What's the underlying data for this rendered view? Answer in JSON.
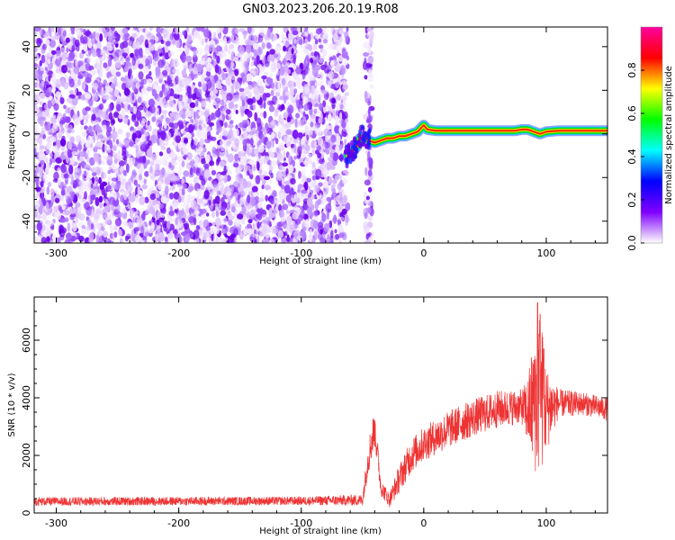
{
  "title": "GN03.2023.206.20.19.R08",
  "chart_data": [
    {
      "type": "heatmap",
      "title": "GN03.2023.206.20.19.R08",
      "xlabel": "Height of straight line (km)",
      "ylabel": "Frequency (Hz)",
      "xlim": [
        -318,
        150
      ],
      "ylim": [
        -50,
        49
      ],
      "x_ticks": [
        "-300",
        "-200",
        "-100",
        "0",
        "100"
      ],
      "y_ticks": [
        "-40",
        "-20",
        "0",
        "20",
        "40"
      ],
      "colorbar": {
        "label": "Normalized spectral amplitude",
        "range": [
          0,
          1
        ],
        "ticks": [
          "0.0",
          "0.2",
          "0.4",
          "0.6",
          "0.8"
        ],
        "colors": [
          "#ffffff",
          "#8000ff",
          "#0000ff",
          "#00ffff",
          "#00ff00",
          "#ffff00",
          "#ff0000",
          "#ff00a0"
        ]
      },
      "noise_region_x": [
        -318,
        -62
      ],
      "noise_strip_x": [
        -48,
        -42
      ],
      "ridge": {
        "x": [
          -62,
          -58,
          -55,
          -52,
          -48,
          -45,
          -40,
          -35,
          -30,
          -25,
          -20,
          -15,
          -10,
          -5,
          0,
          3,
          10,
          30,
          50,
          75,
          80,
          85,
          90,
          95,
          100,
          110,
          130,
          150
        ],
        "y": [
          -10,
          -8,
          -6,
          -2,
          -1,
          -3,
          -4,
          -3,
          -2,
          -2,
          -1,
          -1,
          0,
          1,
          4,
          2,
          1.5,
          1.5,
          1.5,
          1.5,
          2,
          2,
          1,
          0,
          1,
          1.5,
          1.5,
          1.5
        ]
      }
    },
    {
      "type": "line",
      "xlabel": "Height of straight line (km)",
      "ylabel": "SNR (10 * v/v)",
      "xlim": [
        -318,
        150
      ],
      "ylim": [
        0,
        7500
      ],
      "x_ticks": [
        "-300",
        "-200",
        "-100",
        "0",
        "100"
      ],
      "y_ticks": [
        "0",
        "2000",
        "4000",
        "6000"
      ],
      "color": "#ee3333",
      "envelope_x": [
        -318,
        -100,
        -50,
        -45,
        -40,
        -35,
        -28,
        -20,
        -10,
        0,
        20,
        40,
        60,
        80,
        85,
        90,
        95,
        100,
        110,
        130,
        150
      ],
      "envelope_y": [
        400,
        420,
        450,
        2000,
        3000,
        900,
        450,
        1200,
        2000,
        2400,
        2900,
        3300,
        3600,
        3700,
        3500,
        3900,
        4200,
        3600,
        3800,
        3800,
        3600
      ],
      "noise_amplitude": [
        150,
        150,
        200,
        600,
        700,
        300,
        250,
        500,
        600,
        600,
        650,
        650,
        650,
        600,
        1200,
        2500,
        3000,
        1500,
        500,
        400,
        400
      ],
      "peaks": [
        {
          "x": 93,
          "y": 7300
        },
        {
          "x": 95,
          "y": 6900
        },
        {
          "x": 90,
          "y": 5300
        },
        {
          "x": 98,
          "y": 5700
        },
        {
          "x": -40,
          "y": 3200
        }
      ]
    }
  ]
}
